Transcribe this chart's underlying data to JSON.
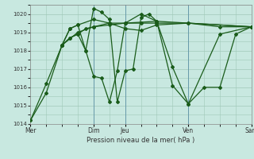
{
  "xlabel": "Pression niveau de la mer( hPa )",
  "background_color": "#c8e8e0",
  "grid_color": "#a0c8b8",
  "line_color": "#1a5c1a",
  "ylim": [
    1014,
    1020.5
  ],
  "yticks": [
    1014,
    1015,
    1016,
    1017,
    1018,
    1019,
    1020
  ],
  "xtick_labels": [
    "Mer",
    "Dim",
    "Jeu",
    "Ven",
    "Sam"
  ],
  "xtick_positions": [
    0,
    4,
    6,
    10,
    14
  ],
  "vline_positions": [
    4,
    6,
    10,
    14
  ],
  "series_x": [
    [
      0,
      1,
      2,
      2.5,
      3,
      3.5,
      4,
      5,
      6,
      8,
      14
    ],
    [
      0,
      1,
      2,
      2.5,
      3,
      4,
      5,
      6,
      7,
      8,
      10,
      14
    ],
    [
      2,
      3,
      4,
      5,
      6,
      7,
      8,
      10,
      12,
      14
    ],
    [
      2,
      2.5,
      3,
      3.5,
      4,
      4.5,
      5,
      5.5,
      6,
      6.5,
      7,
      7.5,
      8,
      9,
      10,
      11,
      12,
      13,
      14
    ],
    [
      2,
      2.5,
      3,
      3.5,
      4,
      4.5,
      5,
      5.5,
      6,
      7,
      8,
      9,
      10,
      12,
      14
    ]
  ],
  "series_y": [
    [
      1014.2,
      1015.7,
      1018.3,
      1018.7,
      1018.9,
      1019.2,
      1019.3,
      1019.4,
      1019.5,
      1019.6,
      1019.3
    ],
    [
      1014.2,
      1016.2,
      1018.3,
      1019.2,
      1019.4,
      1019.7,
      1019.5,
      1019.2,
      1019.1,
      1019.4,
      1019.5,
      1019.3
    ],
    [
      1018.3,
      1019.0,
      1019.3,
      1019.5,
      1019.5,
      1019.5,
      1019.5,
      1019.5,
      1019.3,
      1019.3
    ],
    [
      1018.3,
      1018.7,
      1018.9,
      1018.0,
      1020.3,
      1020.1,
      1019.7,
      1015.2,
      1016.9,
      1017.0,
      1019.8,
      1020.0,
      1019.6,
      1016.1,
      1015.1,
      1016.0,
      1016.0,
      1018.9,
      1019.3
    ],
    [
      1018.3,
      1019.2,
      1019.4,
      1018.0,
      1016.6,
      1016.5,
      1015.2,
      1016.9,
      1019.5,
      1020.0,
      1019.6,
      1017.1,
      1015.1,
      1018.9,
      1019.3
    ]
  ],
  "marker": "D",
  "markersize": 2.0,
  "linewidth": 0.9
}
